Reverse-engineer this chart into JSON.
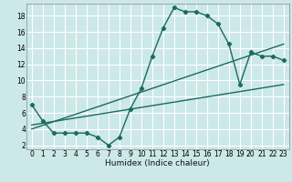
{
  "title": "",
  "xlabel": "Humidex (Indice chaleur)",
  "ylabel": "",
  "bg_color": "#cce8e8",
  "grid_color": "#ffffff",
  "line_color": "#1a6b5a",
  "xlim": [
    -0.5,
    23.5
  ],
  "ylim": [
    1.5,
    19.5
  ],
  "yticks": [
    2,
    4,
    6,
    8,
    10,
    12,
    14,
    16,
    18
  ],
  "xticks": [
    0,
    1,
    2,
    3,
    4,
    5,
    6,
    7,
    8,
    9,
    10,
    11,
    12,
    13,
    14,
    15,
    16,
    17,
    18,
    19,
    20,
    21,
    22,
    23
  ],
  "line1_x": [
    0,
    1,
    2,
    3,
    4,
    5,
    6,
    7,
    8,
    9,
    10,
    11,
    12,
    13,
    14,
    15,
    16,
    17,
    18,
    19,
    20,
    21,
    22,
    23
  ],
  "line1_y": [
    7,
    5,
    3.5,
    3.5,
    3.5,
    3.5,
    3,
    2,
    3,
    6.5,
    9,
    13,
    16.5,
    19,
    18.5,
    18.5,
    18,
    17,
    14.5,
    9.5,
    13.5,
    13,
    13,
    12.5
  ],
  "line2_x": [
    0,
    23
  ],
  "line2_y": [
    4.0,
    14.5
  ],
  "line3_x": [
    0,
    23
  ],
  "line3_y": [
    4.5,
    9.5
  ],
  "marker": "D",
  "markersize": 2.2,
  "linewidth": 1.0,
  "tick_fontsize": 5.5,
  "xlabel_fontsize": 6.5
}
